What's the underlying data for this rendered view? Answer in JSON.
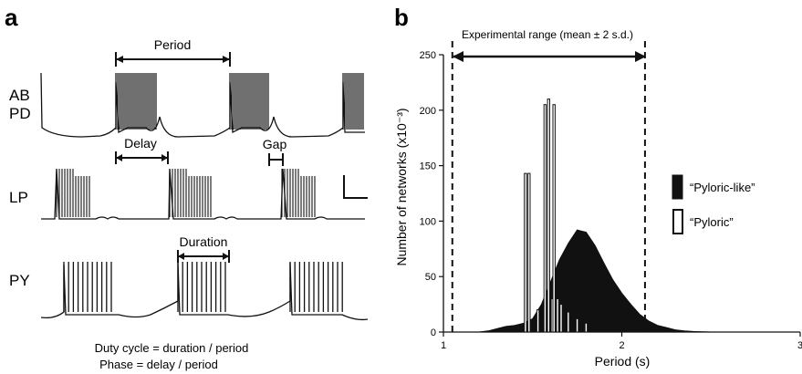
{
  "panel_a": {
    "label": "a",
    "traces": [
      {
        "name": "AB\nPD",
        "lines": [
          "AB",
          "PD"
        ]
      },
      {
        "name": "LP",
        "lines": [
          "LP"
        ]
      },
      {
        "name": "PY",
        "lines": [
          "PY"
        ]
      }
    ],
    "annotations": {
      "period": "Period",
      "delay": "Delay",
      "gap": "Gap",
      "duration": "Duration"
    },
    "formulas": [
      "Duty cycle = duration / period",
      "Phase = delay / period"
    ]
  },
  "panel_b": {
    "label": "b",
    "range_label": "Experimental range (mean ± 2 s.d.)",
    "legend": [
      {
        "label": "“Pyloric-like”",
        "fill": "#111111"
      },
      {
        "label": "“Pyloric”",
        "fill": "#ffffff"
      }
    ]
  },
  "chart_data": {
    "type": "bar",
    "xlabel": "Period (s)",
    "ylabel": "Number of networks (x10⁻³)",
    "xlim": [
      1,
      3
    ],
    "ylim": [
      0,
      250
    ],
    "xticks": [
      "1",
      "2",
      "3"
    ],
    "yticks": [
      "0",
      "50",
      "100",
      "150",
      "200",
      "250"
    ],
    "range_lines": [
      1.05,
      2.13
    ],
    "series": [
      {
        "name": "“Pyloric-like”",
        "x": [
          1.05,
          1.1,
          1.15,
          1.2,
          1.25,
          1.3,
          1.35,
          1.4,
          1.45,
          1.5,
          1.55,
          1.6,
          1.65,
          1.7,
          1.75,
          1.8,
          1.85,
          1.9,
          1.95,
          2.0,
          2.05,
          2.1,
          2.15,
          2.2,
          2.25,
          2.3,
          2.35,
          2.4,
          2.5
        ],
        "values": [
          0,
          0,
          0,
          0,
          1,
          3,
          5,
          6,
          8,
          12,
          25,
          45,
          65,
          80,
          92,
          90,
          78,
          62,
          47,
          35,
          25,
          16,
          10,
          6,
          4,
          2,
          1,
          0.5,
          0
        ]
      },
      {
        "name": "“Pyloric”",
        "x": [
          1.46,
          1.48,
          1.53,
          1.57,
          1.59,
          1.61,
          1.62,
          1.64,
          1.66,
          1.7,
          1.75,
          1.8
        ],
        "values": [
          143,
          143,
          20,
          205,
          210,
          30,
          205,
          30,
          25,
          18,
          12,
          8
        ]
      }
    ]
  }
}
